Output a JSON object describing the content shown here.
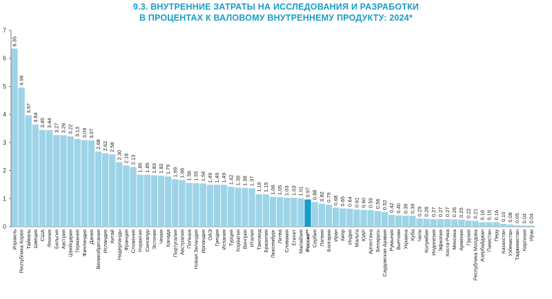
{
  "title_line1": "9.3. ВНУТРЕННИЕ ЗАТРАТЫ НА ИССЛЕДОВАНИЯ И РАЗРАБОТКИ",
  "title_line2": "В ПРОЦЕНТАХ К ВАЛОВОМУ ВНУТРЕННЕМУ ПРОДУКТУ: 2024*",
  "colors": {
    "bar": "#9dd4e8",
    "highlight": "#1a9cc8",
    "title": "#1a9cc8",
    "axis": "#555555"
  },
  "chart_data": {
    "type": "bar",
    "ylim": [
      0,
      7
    ],
    "yticks": [
      0,
      1,
      2,
      3,
      4,
      5,
      6,
      7
    ],
    "grid": false,
    "highlight": "Россия**",
    "categories": [
      "Израиль",
      "Республика Корея",
      "Тайвань",
      "Швеция",
      "США",
      "Япония",
      "Бельгия",
      "Австрия",
      "Швейцария",
      "Германия",
      "Финляндия",
      "Дания",
      "Великобритания",
      "Исландия",
      "Китай",
      "Нидерланды",
      "Франция",
      "Словения",
      "Норвегия",
      "Сингапур",
      "Эстония",
      "Чехия",
      "Канада",
      "Португалия",
      "Австралия",
      "Польша",
      "Новая Зеландия",
      "Ирландия",
      "ОАЭ",
      "Греция",
      "Испания",
      "Турция",
      "Хорватия",
      "Венгрия",
      "Италия",
      "Таиланд",
      "Бразилия",
      "Люксембург",
      "Литва",
      "Словакия",
      "Египет",
      "Малайзия",
      "Россия**",
      "Сербия",
      "Латвия",
      "Болгария",
      "Иран",
      "Кипр",
      "Индия",
      "Мальта",
      "ЮАР",
      "Аргентина",
      "Беларусь",
      "Саудовская Аравия",
      "Румыния",
      "Вьетнам",
      "Украина",
      "Куба",
      "Чили",
      "Колумбия",
      "Индонезия",
      "Эфиопия",
      "Коста-Рика",
      "Мексика",
      "Армения",
      "Грузия",
      "Республика Молдова",
      "Азербайджан",
      "Пакистан",
      "Перу",
      "Казахстан",
      "Узбекистан",
      "Таджикистан",
      "Киргизия",
      "Ирак"
    ],
    "values": [
      6.35,
      4.96,
      3.97,
      3.64,
      3.45,
      3.44,
      3.27,
      3.26,
      3.22,
      3.13,
      3.09,
      3.07,
      2.68,
      2.62,
      2.58,
      2.3,
      2.18,
      2.13,
      1.85,
      1.85,
      1.83,
      1.82,
      1.79,
      1.69,
      1.66,
      1.56,
      1.55,
      1.54,
      1.49,
      1.49,
      1.49,
      1.42,
      1.39,
      1.38,
      1.37,
      1.16,
      1.15,
      1.06,
      1.05,
      1.03,
      1.03,
      1.01,
      0.97,
      0.88,
      0.82,
      0.79,
      0.68,
      0.65,
      0.64,
      0.61,
      0.6,
      0.59,
      0.56,
      0.52,
      0.42,
      0.4,
      0.39,
      0.39,
      0.29,
      0.28,
      0.27,
      0.27,
      0.27,
      0.26,
      0.25,
      0.22,
      0.21,
      0.16,
      0.16,
      0.16,
      0.1,
      0.08,
      0.05,
      0.04,
      0.04
    ],
    "value_labels": [
      "6.35",
      "4.96",
      "3.97",
      "3.64",
      "3.45",
      "3.44",
      "3.27",
      "3.26",
      "3.22",
      "3.13",
      "3.09",
      "3.07",
      "2.68",
      "2.62",
      "2.58",
      "2.30",
      "2.18",
      "2.13",
      "1.85",
      "1.85",
      "1.83",
      "1.82",
      "1.79",
      "1.69",
      "1.66",
      "1.56",
      "1.55",
      "1.54",
      "1.49",
      "1.49",
      "1.49",
      "1.42",
      "1.39",
      "1.38",
      "1.37",
      "1.16",
      "1.15",
      "1.06",
      "1.05",
      "1.03",
      "1.03",
      "1.01",
      "0.97",
      "0.88",
      "0.82",
      "0.79",
      "0.68",
      "0.65",
      "0.64",
      "0.61",
      "0.60",
      "0.59",
      "0.56",
      "0.52",
      "0.42",
      "0.40",
      "0.39",
      "0.39",
      "0.29",
      "0.28",
      "0.27",
      "0.27",
      "0.27",
      "0.26",
      "0.25",
      "0.22",
      "0.21",
      "0.16",
      "0.16",
      "0.16",
      "0.10",
      "0.08",
      "0.05",
      "0.04",
      "0.04"
    ]
  }
}
